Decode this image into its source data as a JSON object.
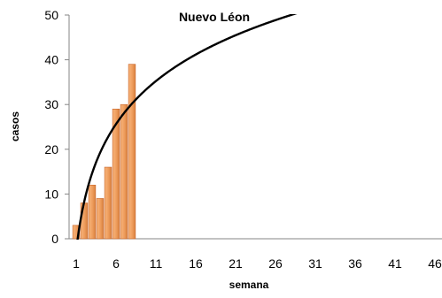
{
  "chart_data": {
    "type": "bar",
    "title": "Nuevo Léon",
    "xlabel": "semana",
    "ylabel": "casos",
    "categories": [
      1,
      2,
      3,
      4,
      5,
      6,
      7,
      8
    ],
    "values": [
      3,
      8,
      12,
      9,
      16,
      29,
      30,
      39
    ],
    "xlim": [
      1,
      47
    ],
    "ylim": [
      0,
      50
    ],
    "x_ticks": [
      1,
      6,
      11,
      16,
      21,
      26,
      31,
      36,
      41,
      46
    ],
    "y_ticks": [
      0,
      10,
      20,
      30,
      40,
      50
    ],
    "trendline": {
      "type": "logarithmic"
    },
    "grid": false,
    "colors": {
      "bar": "#F0A060",
      "bar_edge": "#C86428",
      "trend": "#000000"
    }
  }
}
